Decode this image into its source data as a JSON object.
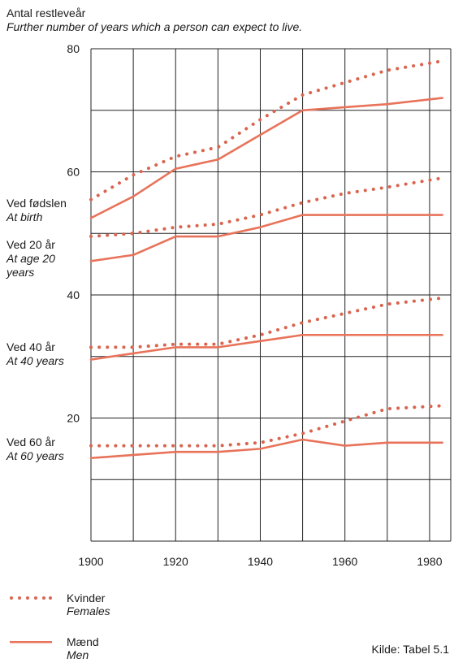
{
  "title": {
    "danish": "Antal restleveår",
    "english": "Further number of years which a person can expect to live."
  },
  "row_labels": [
    {
      "danish": "Ved fødslen",
      "english": "At birth"
    },
    {
      "danish": "Ved 20 år",
      "english": "At age 20 years"
    },
    {
      "danish": "Ved 40 år",
      "english": "At 40 years"
    },
    {
      "danish": "Ved 60 år",
      "english": "At 60 years"
    }
  ],
  "legend": {
    "females": {
      "danish": "Kvinder",
      "english": "Females"
    },
    "males": {
      "danish": "Mænd",
      "english": "Men"
    }
  },
  "source": "Kilde: Tabel 5.1",
  "colors": {
    "females": "#d9654f",
    "males": "#e8735a",
    "grid": "#222222"
  },
  "chart_data": {
    "type": "line",
    "title": "Antal restleveår / Further number of years which a person can expect to live.",
    "xlim": [
      1900,
      1985
    ],
    "ylim": [
      0,
      80
    ],
    "x_ticks": [
      1900,
      1920,
      1940,
      1960,
      1980
    ],
    "y_ticks": [
      20,
      40,
      60,
      80
    ],
    "grid": true,
    "series": [
      {
        "name": "Ved fødslen – Kvinder / At birth – Females",
        "group": "females",
        "x": [
          1900,
          1910,
          1920,
          1930,
          1940,
          1950,
          1960,
          1970,
          1983
        ],
        "y": [
          55.5,
          59.5,
          62.5,
          64,
          68.5,
          72.5,
          74.5,
          76.5,
          78
        ]
      },
      {
        "name": "Ved fødslen – Mænd / At birth – Men",
        "group": "males",
        "x": [
          1900,
          1910,
          1920,
          1930,
          1940,
          1950,
          1960,
          1970,
          1983
        ],
        "y": [
          52.5,
          56,
          60.5,
          62,
          66,
          70,
          70.5,
          71,
          72
        ]
      },
      {
        "name": "Ved 20 år – Kvinder / At age 20 years – Females",
        "group": "females",
        "x": [
          1900,
          1910,
          1920,
          1930,
          1940,
          1950,
          1960,
          1970,
          1983
        ],
        "y": [
          49.5,
          50,
          51,
          51.5,
          53,
          55,
          56.5,
          57.5,
          59
        ]
      },
      {
        "name": "Ved 20 år – Mænd / At age 20 years – Men",
        "group": "males",
        "x": [
          1900,
          1910,
          1920,
          1930,
          1940,
          1950,
          1960,
          1970,
          1983
        ],
        "y": [
          45.5,
          46.5,
          49.5,
          49.5,
          51,
          53,
          53,
          53,
          53
        ]
      },
      {
        "name": "Ved 40 år – Kvinder / At 40 years – Females",
        "group": "females",
        "x": [
          1900,
          1910,
          1920,
          1930,
          1940,
          1950,
          1960,
          1970,
          1983
        ],
        "y": [
          31.5,
          31.5,
          32,
          32,
          33.5,
          35.5,
          37,
          38.5,
          39.5
        ]
      },
      {
        "name": "Ved 40 år – Mænd / At 40 years – Men",
        "group": "males",
        "x": [
          1900,
          1910,
          1920,
          1930,
          1940,
          1950,
          1960,
          1970,
          1983
        ],
        "y": [
          29.5,
          30.5,
          31.5,
          31.5,
          32.5,
          33.5,
          33.5,
          33.5,
          33.5
        ]
      },
      {
        "name": "Ved 60 år – Kvinder / At 60 years – Females",
        "group": "females",
        "x": [
          1900,
          1910,
          1920,
          1930,
          1940,
          1950,
          1960,
          1970,
          1983
        ],
        "y": [
          15.5,
          15.5,
          15.5,
          15.5,
          16,
          17.5,
          19.5,
          21.5,
          22
        ]
      },
      {
        "name": "Ved 60 år – Mænd / At 60 years – Men",
        "group": "males",
        "x": [
          1900,
          1910,
          1920,
          1930,
          1940,
          1950,
          1960,
          1970,
          1983
        ],
        "y": [
          13.5,
          14,
          14.5,
          14.5,
          15,
          16.5,
          15.5,
          16,
          16
        ]
      }
    ]
  }
}
